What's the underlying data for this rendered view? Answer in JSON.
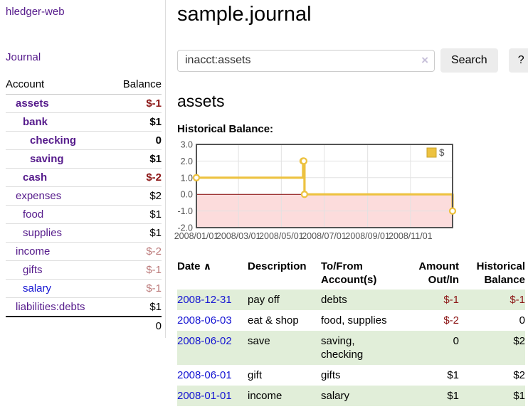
{
  "app": {
    "brand": "hledger-web"
  },
  "sidebar": {
    "journal_link": "Journal",
    "accounts": {
      "col_account": "Account",
      "col_balance": "Balance",
      "rows": [
        {
          "name": "assets",
          "balance": "$-1",
          "depth": 1,
          "bold": true
        },
        {
          "name": "bank",
          "balance": "$1",
          "depth": 2,
          "bold": true
        },
        {
          "name": "checking",
          "balance": "0",
          "depth": 3,
          "bold": true
        },
        {
          "name": "saving",
          "balance": "$1",
          "depth": 3,
          "bold": true
        },
        {
          "name": "cash",
          "balance": "$-2",
          "depth": 2,
          "bold": true
        },
        {
          "name": "expenses",
          "balance": "$2",
          "depth": 1,
          "bold": false
        },
        {
          "name": "food",
          "balance": "$1",
          "depth": 2,
          "bold": false
        },
        {
          "name": "supplies",
          "balance": "$1",
          "depth": 2,
          "bold": false
        },
        {
          "name": "income",
          "balance": "$-2",
          "depth": 1,
          "bold": false
        },
        {
          "name": "gifts",
          "balance": "$-1",
          "depth": 2,
          "bold": false
        },
        {
          "name": "salary",
          "balance": "$-1",
          "depth": 2,
          "bold": false,
          "unvisited": true
        },
        {
          "name": "liabilities:debts",
          "balance": "$1",
          "depth": 1,
          "bold": false
        }
      ],
      "total": "0"
    }
  },
  "main": {
    "title": "sample.journal",
    "search": {
      "value": "inacct:assets",
      "button_label": "Search",
      "help_label": "?"
    },
    "account_heading": "assets",
    "chart_heading": "Historical Balance:"
  },
  "icons": {
    "clear": "×",
    "sort_asc": "∧"
  },
  "colors": {
    "visited_link": "#551a8b",
    "link": "#1414d2",
    "negative_strong": "#8b1414",
    "negative_muted": "#bb7878",
    "row_shade_green": "#e1eed9",
    "series_gold": "#edc240",
    "chart_negative_region": "#fcdcdc",
    "zero_line": "#800000",
    "chart_border": "#545454",
    "grid": "#e2e2e2"
  },
  "chart_data": {
    "type": "line",
    "title": "Historical Balance:",
    "step": true,
    "series": [
      {
        "name": "$",
        "color": "#edc240",
        "points": [
          {
            "x": "2008-01-01",
            "y": 1
          },
          {
            "x": "2008-06-01",
            "y": 2
          },
          {
            "x": "2008-06-02",
            "y": 2
          },
          {
            "x": "2008-06-03",
            "y": 0
          },
          {
            "x": "2008-12-31",
            "y": -1
          }
        ]
      }
    ],
    "xlim": [
      "2008-01-01",
      "2008-12-31"
    ],
    "ylim": [
      -2.0,
      3.0
    ],
    "yticks": [
      3.0,
      2.0,
      1.0,
      0.0,
      -1.0,
      -2.0
    ],
    "xticks": [
      "2008/01/01",
      "2008/03/01",
      "2008/05/01",
      "2008/07/01",
      "2008/09/01",
      "2008/11/01"
    ],
    "legend": {
      "label": "$",
      "position": "top-right"
    },
    "grid": true
  },
  "register": {
    "columns": {
      "date": "Date",
      "description": "Description",
      "accounts": "To/From Account(s)",
      "amount": "Amount Out/In",
      "balance": "Historical Balance"
    },
    "rows": [
      {
        "date": "2008-12-31",
        "description": "pay off",
        "accounts": "debts",
        "amount": "$-1",
        "balance": "$-1"
      },
      {
        "date": "2008-06-03",
        "description": "eat & shop",
        "accounts": "food, supplies",
        "amount": "$-2",
        "balance": "0"
      },
      {
        "date": "2008-06-02",
        "description": "save",
        "accounts": "saving, checking",
        "amount": "0",
        "balance": "$2"
      },
      {
        "date": "2008-06-01",
        "description": "gift",
        "accounts": "gifts",
        "amount": "$1",
        "balance": "$2"
      },
      {
        "date": "2008-01-01",
        "description": "income",
        "accounts": "salary",
        "amount": "$1",
        "balance": "$1"
      }
    ]
  }
}
